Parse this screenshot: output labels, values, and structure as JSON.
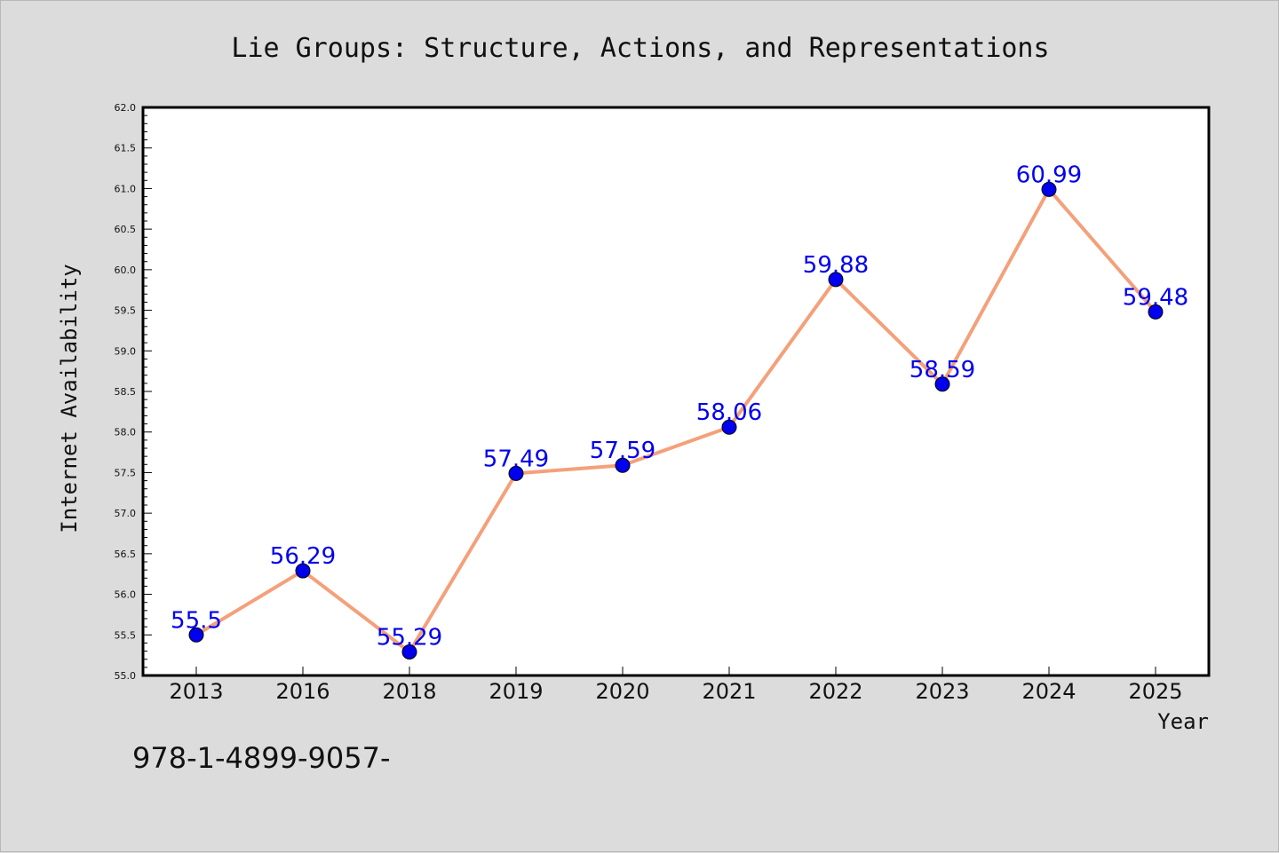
{
  "chart_data": {
    "type": "line",
    "title": "Lie Groups: Structure, Actions, and Representations",
    "xlabel": "Year",
    "ylabel": "Internet Availability",
    "categories": [
      "2013",
      "2016",
      "2018",
      "2019",
      "2020",
      "2021",
      "2022",
      "2023",
      "2024",
      "2025"
    ],
    "series": [
      {
        "values": [
          55.5,
          56.29,
          55.29,
          57.49,
          57.59,
          58.06,
          59.88,
          58.59,
          60.99,
          59.48
        ],
        "labels": [
          "55.5",
          "56.29",
          "55.29",
          "57.49",
          "57.59",
          "58.06",
          "59.88",
          "58.59",
          "60.99",
          "59.48"
        ],
        "line_color": "#f4a07a",
        "marker_color": "#0000ee"
      }
    ],
    "ylim": [
      55.0,
      62.0
    ],
    "yticks": [
      "55.0",
      "55.5",
      "56.0",
      "56.5",
      "57.0",
      "57.5",
      "58.0",
      "58.5",
      "59.0",
      "59.5",
      "60.0",
      "60.5",
      "61.0",
      "61.5",
      "62.0"
    ],
    "grid": false,
    "legend": "none"
  },
  "footer_text": "978-1-4899-9057-",
  "colors": {
    "background": "#dcdcdc",
    "plot_background": "#ffffff",
    "label_color": "#0000ee"
  }
}
